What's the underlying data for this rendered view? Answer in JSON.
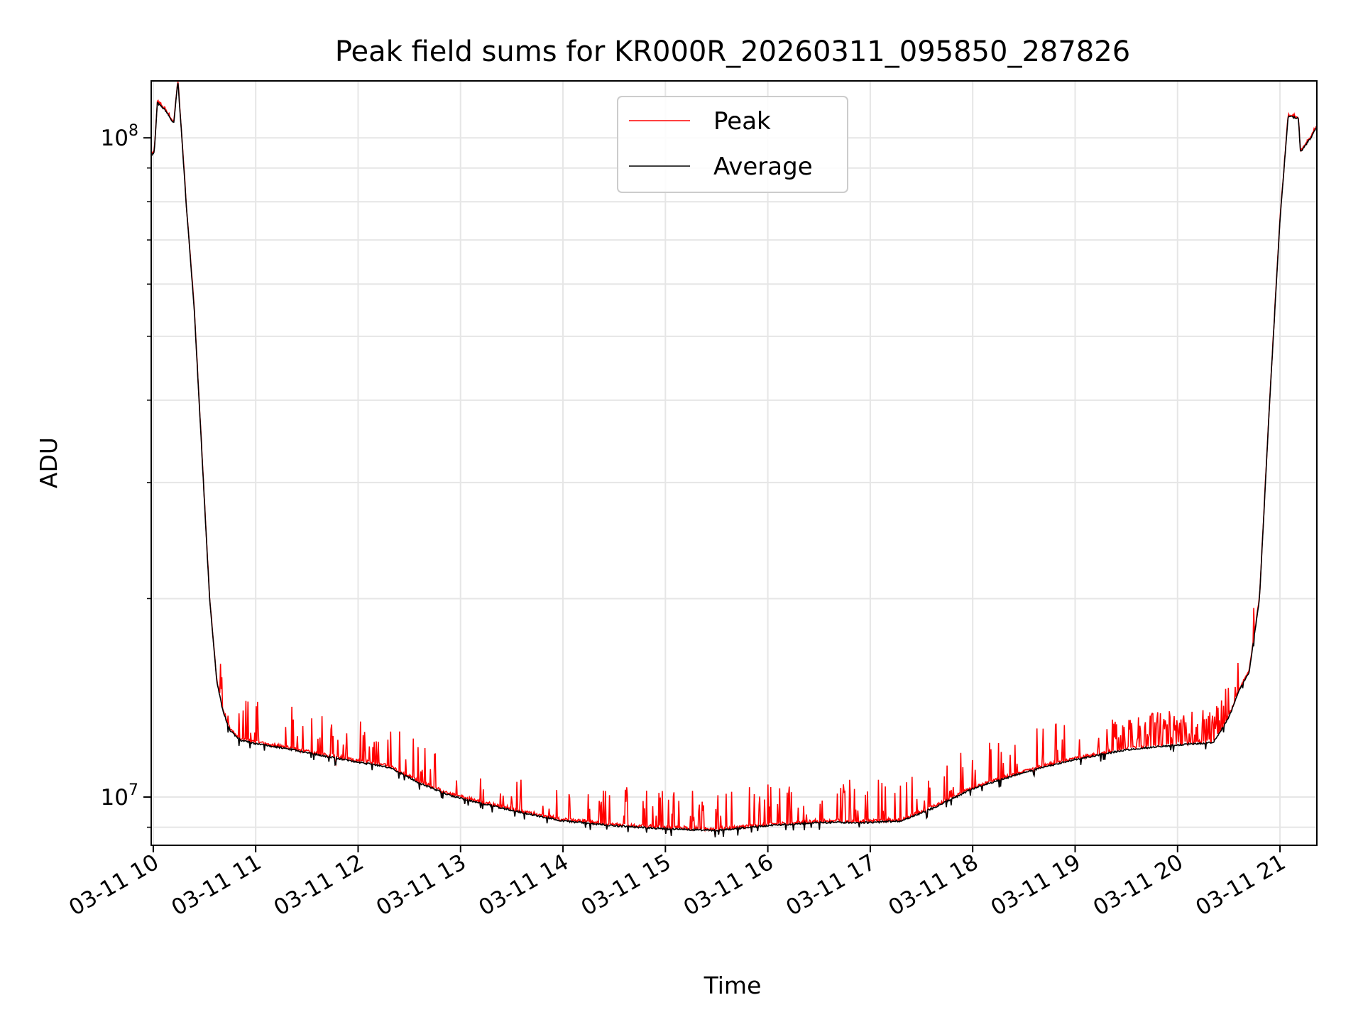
{
  "chart_data": {
    "type": "line",
    "title": "Peak field sums for KR000R_20260311_095850_287826",
    "xlabel": "Time",
    "ylabel": "ADU",
    "x_unit": "hours since 2026-03-11 00:00",
    "xlim": [
      9.98,
      21.36
    ],
    "y_scale": "log",
    "ylim": [
      8450000,
      122000000
    ],
    "grid": true,
    "legend_position": "upper center",
    "x_ticks": [
      {
        "value": 10,
        "label": "03-11 10"
      },
      {
        "value": 11,
        "label": "03-11 11"
      },
      {
        "value": 12,
        "label": "03-11 12"
      },
      {
        "value": 13,
        "label": "03-11 13"
      },
      {
        "value": 14,
        "label": "03-11 14"
      },
      {
        "value": 15,
        "label": "03-11 15"
      },
      {
        "value": 16,
        "label": "03-11 16"
      },
      {
        "value": 17,
        "label": "03-11 17"
      },
      {
        "value": 18,
        "label": "03-11 18"
      },
      {
        "value": 19,
        "label": "03-11 19"
      },
      {
        "value": 20,
        "label": "03-11 20"
      },
      {
        "value": 21,
        "label": "03-11 21"
      }
    ],
    "y_major_ticks": [
      {
        "value": 10000000,
        "base": "10",
        "exp": "7"
      },
      {
        "value": 100000000,
        "base": "10",
        "exp": "8"
      }
    ],
    "y_minor_ticks": [
      9000000,
      20000000,
      30000000,
      40000000,
      50000000,
      60000000,
      70000000,
      80000000,
      90000000
    ],
    "series": [
      {
        "name": "Peak",
        "color": "#ff0000",
        "spikes": true
      },
      {
        "name": "Average",
        "color": "#000000",
        "spikes": false
      }
    ],
    "baseline_points": [
      [
        9.98,
        94000000
      ],
      [
        10.01,
        95000000
      ],
      [
        10.04,
        113000000
      ],
      [
        10.12,
        110000000
      ],
      [
        10.2,
        105000000
      ],
      [
        10.24,
        122000000
      ],
      [
        10.27,
        105000000
      ],
      [
        10.32,
        80000000
      ],
      [
        10.4,
        55000000
      ],
      [
        10.48,
        32000000
      ],
      [
        10.55,
        20000000
      ],
      [
        10.62,
        15000000
      ],
      [
        10.68,
        13500000
      ],
      [
        10.75,
        12600000
      ],
      [
        10.85,
        12200000
      ],
      [
        11.0,
        12050000
      ],
      [
        11.3,
        11850000
      ],
      [
        11.6,
        11600000
      ],
      [
        12.0,
        11300000
      ],
      [
        12.3,
        11100000
      ],
      [
        12.6,
        10500000
      ],
      [
        12.9,
        10050000
      ],
      [
        13.3,
        9700000
      ],
      [
        13.7,
        9400000
      ],
      [
        14.0,
        9200000
      ],
      [
        14.5,
        9050000
      ],
      [
        15.0,
        8950000
      ],
      [
        15.5,
        8900000
      ],
      [
        16.0,
        9050000
      ],
      [
        16.5,
        9150000
      ],
      [
        17.0,
        9150000
      ],
      [
        17.3,
        9200000
      ],
      [
        17.6,
        9600000
      ],
      [
        18.0,
        10300000
      ],
      [
        18.5,
        10900000
      ],
      [
        19.0,
        11400000
      ],
      [
        19.5,
        11800000
      ],
      [
        20.0,
        12000000
      ],
      [
        20.35,
        12100000
      ],
      [
        20.5,
        13200000
      ],
      [
        20.6,
        14500000
      ],
      [
        20.7,
        15500000
      ],
      [
        20.8,
        20000000
      ],
      [
        20.9,
        40000000
      ],
      [
        21.0,
        75000000
      ],
      [
        21.08,
        108000000
      ],
      [
        21.18,
        107000000
      ],
      [
        21.2,
        95000000
      ],
      [
        21.3,
        100000000
      ],
      [
        21.36,
        104000000
      ]
    ]
  }
}
